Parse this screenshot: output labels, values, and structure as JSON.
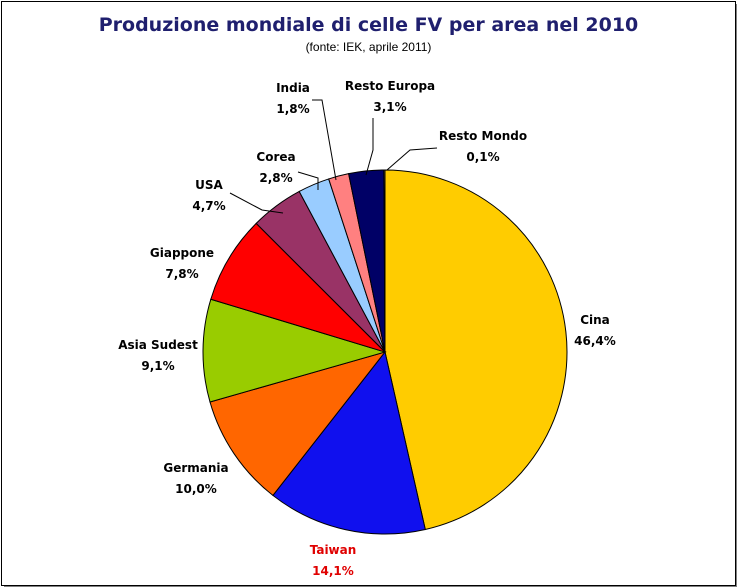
{
  "chart_data": {
    "type": "pie",
    "title": "Produzione mondiale di celle FV per area nel 2010",
    "subtitle": "(fonte: IEK, aprile 2011)",
    "slices": [
      {
        "name": "Cina",
        "value": 46.4,
        "label": "46,4%",
        "color": "#ffcc00",
        "label_color": "#000000"
      },
      {
        "name": "Taiwan",
        "value": 14.1,
        "label": "14,1%",
        "color": "#1010ee",
        "label_color": "#e00000"
      },
      {
        "name": "Germania",
        "value": 10.0,
        "label": "10,0%",
        "color": "#ff6600",
        "label_color": "#000000"
      },
      {
        "name": "Asia Sudest",
        "value": 9.1,
        "label": "9,1%",
        "color": "#99cc00",
        "label_color": "#000000"
      },
      {
        "name": "Giappone",
        "value": 7.8,
        "label": "7,8%",
        "color": "#ff0000",
        "label_color": "#000000"
      },
      {
        "name": "USA",
        "value": 4.7,
        "label": "4,7%",
        "color": "#993366",
        "label_color": "#000000"
      },
      {
        "name": "Corea",
        "value": 2.8,
        "label": "2,8%",
        "color": "#99ccff",
        "label_color": "#000000"
      },
      {
        "name": "India",
        "value": 1.8,
        "label": "1,8%",
        "color": "#ff8080",
        "label_color": "#000000"
      },
      {
        "name": "Resto Europa",
        "value": 3.1,
        "label": "3,1%",
        "color": "#000066",
        "label_color": "#000000"
      },
      {
        "name": "Resto Mondo",
        "value": 0.1,
        "label": "0,1%",
        "color": "#ffcc66",
        "label_color": "#000000"
      }
    ]
  }
}
